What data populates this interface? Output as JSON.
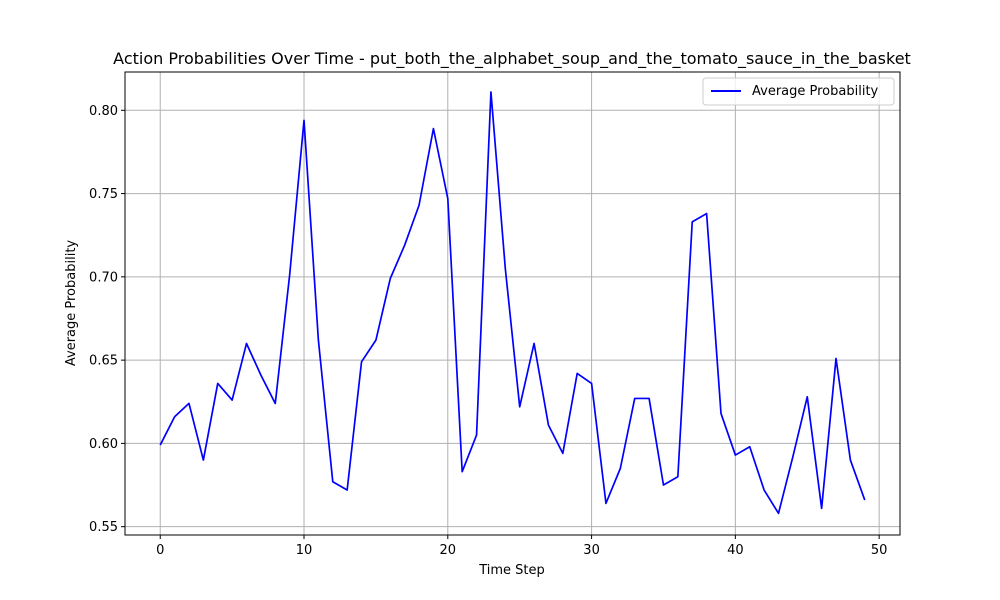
{
  "chart_data": {
    "type": "line",
    "title": "Action Probabilities Over Time - put_both_the_alphabet_soup_and_the_tomato_sauce_in_the_basket",
    "xlabel": "Time Step",
    "ylabel": "Average Probability",
    "xlim": [
      -2.45,
      51.45
    ],
    "ylim": [
      0.545,
      0.823
    ],
    "xticks": [
      0,
      10,
      20,
      30,
      40,
      50
    ],
    "yticks": [
      0.55,
      0.6,
      0.65,
      0.7,
      0.75,
      0.8
    ],
    "xtick_labels": [
      "0",
      "10",
      "20",
      "30",
      "40",
      "50"
    ],
    "ytick_labels": [
      "0.55",
      "0.60",
      "0.65",
      "0.70",
      "0.75",
      "0.80"
    ],
    "grid": true,
    "legend_position": "top-right",
    "series": [
      {
        "name": "Average Probability",
        "color": "#0000ff",
        "x": [
          0,
          1,
          2,
          3,
          4,
          5,
          6,
          7,
          8,
          9,
          10,
          11,
          12,
          13,
          14,
          15,
          16,
          17,
          18,
          19,
          20,
          21,
          22,
          23,
          24,
          25,
          26,
          27,
          28,
          29,
          30,
          31,
          32,
          33,
          34,
          35,
          36,
          37,
          38,
          39,
          40,
          41,
          42,
          43,
          44,
          45,
          46,
          47,
          48,
          49
        ],
        "y": [
          0.599,
          0.616,
          0.624,
          0.59,
          0.636,
          0.626,
          0.66,
          0.641,
          0.624,
          0.701,
          0.794,
          0.662,
          0.577,
          0.572,
          0.649,
          0.662,
          0.699,
          0.719,
          0.743,
          0.789,
          0.747,
          0.583,
          0.605,
          0.811,
          0.705,
          0.622,
          0.66,
          0.611,
          0.594,
          0.642,
          0.636,
          0.564,
          0.585,
          0.627,
          0.627,
          0.575,
          0.58,
          0.733,
          0.738,
          0.618,
          0.593,
          0.598,
          0.572,
          0.558,
          0.592,
          0.628,
          0.561,
          0.651,
          0.59,
          0.566
        ]
      }
    ]
  }
}
